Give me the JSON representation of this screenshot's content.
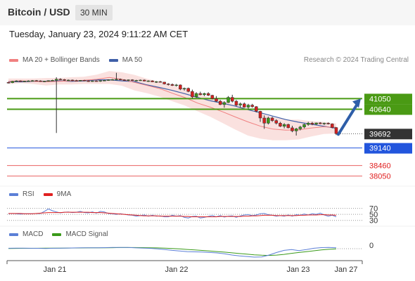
{
  "header": {
    "pair": "Bitcoin / USD",
    "timeframe": "30 MIN"
  },
  "datetime": "Tuesday, January 23, 2024 9:11:22 AM CET",
  "credit": "Research © 2024 Trading Central",
  "legends": {
    "main": [
      {
        "label": "MA 20 + Bollinger Bands",
        "color": "#f08080"
      },
      {
        "label": "MA 50",
        "color": "#3f5fa8"
      }
    ],
    "rsi": [
      {
        "label": "RSI",
        "color": "#5b7fd6"
      },
      {
        "label": "9MA",
        "color": "#e02020"
      }
    ],
    "macd": [
      {
        "label": "MACD",
        "color": "#5b7fd6"
      },
      {
        "label": "MACD Signal",
        "color": "#3a9a1a"
      }
    ]
  },
  "chart_data": {
    "type": "candlestick",
    "price_range": [
      37850,
      42150
    ],
    "x_labels": [
      "Jan 21",
      "Jan 22",
      "Jan 23",
      "Jan 27"
    ],
    "levels": [
      {
        "value": 41050,
        "label": "41050",
        "kind": "resistance",
        "color": "#4a9a14"
      },
      {
        "value": 40640,
        "label": "40640",
        "kind": "resistance",
        "color": "#4a9a14"
      },
      {
        "value": 39692,
        "label": "39692",
        "kind": "last",
        "color": "#333333"
      },
      {
        "value": 39140,
        "label": "39140",
        "kind": "pivot",
        "color": "#2255dd"
      },
      {
        "value": 38460,
        "label": "38460",
        "kind": "support",
        "color": "#e02020"
      },
      {
        "value": 38050,
        "label": "38050",
        "kind": "support",
        "color": "#e02020"
      }
    ],
    "target": {
      "from": 39692,
      "to": 41050
    },
    "candles": [
      [
        41680,
        41700,
        41640,
        41670
      ],
      [
        41670,
        41740,
        41650,
        41720
      ],
      [
        41720,
        41760,
        41700,
        41740
      ],
      [
        41740,
        41760,
        41700,
        41710
      ],
      [
        41710,
        41740,
        41690,
        41730
      ],
      [
        41730,
        41760,
        41710,
        41740
      ],
      [
        41740,
        41770,
        41720,
        41750
      ],
      [
        41750,
        41770,
        41730,
        41740
      ],
      [
        41740,
        41760,
        41700,
        41720
      ],
      [
        41720,
        41740,
        41690,
        41730
      ],
      [
        41730,
        41760,
        41710,
        41750
      ],
      [
        41750,
        41780,
        41730,
        41760
      ],
      [
        41760,
        41880,
        39720,
        41800
      ],
      [
        41800,
        41840,
        41770,
        41790
      ],
      [
        41790,
        41810,
        41740,
        41760
      ],
      [
        41760,
        41790,
        41740,
        41770
      ],
      [
        41770,
        41790,
        41730,
        41750
      ],
      [
        41750,
        41780,
        41720,
        41740
      ],
      [
        41740,
        41770,
        41720,
        41760
      ],
      [
        41760,
        41780,
        41730,
        41740
      ],
      [
        41740,
        41760,
        41700,
        41720
      ],
      [
        41720,
        41750,
        41700,
        41740
      ],
      [
        41740,
        41760,
        41710,
        41730
      ],
      [
        41730,
        41760,
        41700,
        41750
      ],
      [
        41750,
        41780,
        41730,
        41760
      ],
      [
        41760,
        41800,
        41740,
        41780
      ],
      [
        41780,
        41810,
        41760,
        41790
      ],
      [
        41790,
        42050,
        41760,
        41800
      ],
      [
        41800,
        41830,
        41770,
        41780
      ],
      [
        41780,
        41800,
        41740,
        41760
      ],
      [
        41760,
        41790,
        41730,
        41780
      ],
      [
        41780,
        41800,
        41740,
        41750
      ],
      [
        41750,
        41780,
        41720,
        41760
      ],
      [
        41760,
        41790,
        41740,
        41770
      ],
      [
        41770,
        41790,
        41720,
        41730
      ],
      [
        41730,
        41760,
        41700,
        41740
      ],
      [
        41740,
        41760,
        41690,
        41700
      ],
      [
        41700,
        41730,
        41660,
        41710
      ],
      [
        41710,
        41740,
        41680,
        41690
      ],
      [
        41690,
        41700,
        41600,
        41620
      ],
      [
        41620,
        41650,
        41560,
        41600
      ],
      [
        41600,
        41640,
        41540,
        41560
      ],
      [
        41560,
        41620,
        41520,
        41580
      ],
      [
        41580,
        41600,
        41380,
        41420
      ],
      [
        41420,
        41480,
        41360,
        41450
      ],
      [
        41450,
        41480,
        41300,
        41330
      ],
      [
        41330,
        41400,
        41060,
        41120
      ],
      [
        41120,
        41300,
        41080,
        41250
      ],
      [
        41250,
        41320,
        41180,
        41200
      ],
      [
        41200,
        41280,
        41150,
        41250
      ],
      [
        41250,
        41300,
        41150,
        41180
      ],
      [
        41180,
        41200,
        41020,
        41050
      ],
      [
        41050,
        41150,
        40920,
        40950
      ],
      [
        40950,
        41000,
        40800,
        40820
      ],
      [
        40820,
        40950,
        40700,
        40900
      ],
      [
        40900,
        41150,
        40880,
        41100
      ],
      [
        41100,
        41200,
        40900,
        40950
      ],
      [
        40950,
        41000,
        40750,
        40800
      ],
      [
        40800,
        40900,
        40700,
        40850
      ],
      [
        40850,
        40900,
        40700,
        40720
      ],
      [
        40720,
        40850,
        40650,
        40800
      ],
      [
        40800,
        40850,
        40700,
        40740
      ],
      [
        40740,
        40760,
        40520,
        40560
      ],
      [
        40560,
        40580,
        40150,
        40300
      ],
      [
        40300,
        40400,
        39880,
        40100
      ],
      [
        40100,
        40350,
        40050,
        40300
      ],
      [
        40300,
        40350,
        40150,
        40200
      ],
      [
        40200,
        40250,
        40050,
        40100
      ],
      [
        40100,
        40150,
        39950,
        39980
      ],
      [
        39980,
        40100,
        39900,
        40050
      ],
      [
        40050,
        40080,
        39900,
        39920
      ],
      [
        39920,
        40000,
        39750,
        39800
      ],
      [
        39800,
        39920,
        39620,
        39880
      ],
      [
        39880,
        40000,
        39820,
        39950
      ],
      [
        39950,
        40080,
        39900,
        40050
      ],
      [
        40050,
        40150,
        40000,
        40100
      ],
      [
        40100,
        40150,
        40020,
        40060
      ],
      [
        40060,
        40120,
        40030,
        40110
      ],
      [
        40110,
        40140,
        40060,
        40080
      ],
      [
        40080,
        40120,
        40030,
        40100
      ],
      [
        40100,
        40130,
        40050,
        40070
      ],
      [
        40070,
        40090,
        39900,
        39930
      ],
      [
        39930,
        39950,
        39640,
        39692
      ]
    ],
    "ma20": [
      41720,
      41740,
      41720,
      41700,
      41720,
      41740,
      41760,
      41800,
      41870,
      41800,
      41680,
      41560,
      41440,
      41260,
      41090,
      40880,
      40720,
      40540,
      40340,
      40150,
      39980,
      39870,
      39830,
      39840,
      39910,
      39960,
      39940
    ],
    "bb_upper": [
      41830,
      41830,
      41830,
      41850,
      41850,
      41880,
      41900,
      41980,
      42120,
      42070,
      41970,
      41820,
      41700,
      41560,
      41420,
      41230,
      41090,
      40960,
      40830,
      40660,
      40480,
      40330,
      40240,
      40240,
      40180,
      40150,
      40090
    ],
    "bb_lower": [
      41610,
      41650,
      41610,
      41560,
      41600,
      41600,
      41620,
      41620,
      41620,
      41550,
      41370,
      41260,
      41120,
      40950,
      40780,
      40560,
      40350,
      40100,
      39850,
      39620,
      39500,
      39440,
      39440,
      39470,
      39580,
      39680,
      39700
    ],
    "ma50": [
      41710,
      41700,
      41720,
      41720,
      41740,
      41720,
      41740,
      41780,
      41780,
      41740,
      41710,
      41580,
      41480,
      41370,
      41240,
      41100,
      40970,
      40870,
      40760,
      40620,
      40500,
      40370,
      40240,
      40140,
      40060,
      39980,
      39900
    ],
    "rsi": [
      52,
      53,
      52,
      51,
      52,
      52,
      52,
      53,
      53,
      60,
      68,
      62,
      58,
      55,
      57,
      58,
      56,
      57,
      60,
      56,
      55,
      58,
      54,
      60,
      58,
      53,
      52,
      50,
      52,
      50,
      48,
      47,
      44,
      46,
      48,
      44,
      47,
      44,
      45,
      42,
      42,
      47,
      44,
      46,
      40,
      38,
      43,
      44,
      38,
      40,
      43,
      46,
      42,
      46,
      41,
      44,
      45,
      40,
      45,
      48,
      49,
      46,
      48,
      52,
      53,
      49,
      47,
      44,
      46,
      44,
      48,
      44,
      49,
      47,
      51,
      48,
      52,
      50,
      54,
      48,
      44,
      47,
      42
    ],
    "rsi_ma": [
      53,
      53,
      53,
      53,
      52,
      52,
      52,
      53,
      54,
      55,
      56,
      56,
      56,
      56,
      57,
      57,
      57,
      57,
      57,
      57,
      57,
      56,
      56,
      56,
      55,
      54,
      53,
      52,
      51,
      50,
      49,
      48,
      47,
      46,
      45,
      45,
      45,
      45,
      44,
      44,
      44,
      44,
      44,
      44,
      43,
      43,
      42,
      42,
      42,
      42,
      42,
      42,
      42,
      43,
      43,
      43,
      43,
      43,
      43,
      44,
      44,
      45,
      45,
      46,
      47,
      47,
      47,
      46,
      46,
      46,
      46,
      46,
      46,
      47,
      47,
      48,
      48,
      48,
      49,
      49,
      48,
      48,
      47
    ],
    "rsi_levels": [
      70,
      50,
      30
    ],
    "macd": [
      10,
      12,
      12,
      10,
      8,
      5,
      10,
      12,
      15,
      18,
      20,
      20,
      22,
      25,
      28,
      30,
      28,
      22,
      15,
      8,
      -5,
      -20,
      -40,
      -55,
      -70,
      -75,
      -80,
      -90,
      -100,
      -120,
      -150,
      -170,
      -185,
      -200,
      -195,
      -150,
      -90,
      -40,
      -20,
      -45,
      -20,
      10,
      25,
      28,
      20
    ],
    "macd_signal": [
      5,
      6,
      8,
      9,
      10,
      11,
      12,
      13,
      15,
      17,
      19,
      20,
      21,
      22,
      24,
      26,
      27,
      26,
      25,
      22,
      18,
      12,
      5,
      -5,
      -18,
      -30,
      -42,
      -55,
      -68,
      -82,
      -98,
      -115,
      -130,
      -145,
      -155,
      -160,
      -152,
      -135,
      -110,
      -90,
      -70,
      -50,
      -30,
      -15,
      -5
    ],
    "macd_zero_label": "0",
    "rsi_labels": [
      "70",
      "50",
      "30"
    ]
  }
}
